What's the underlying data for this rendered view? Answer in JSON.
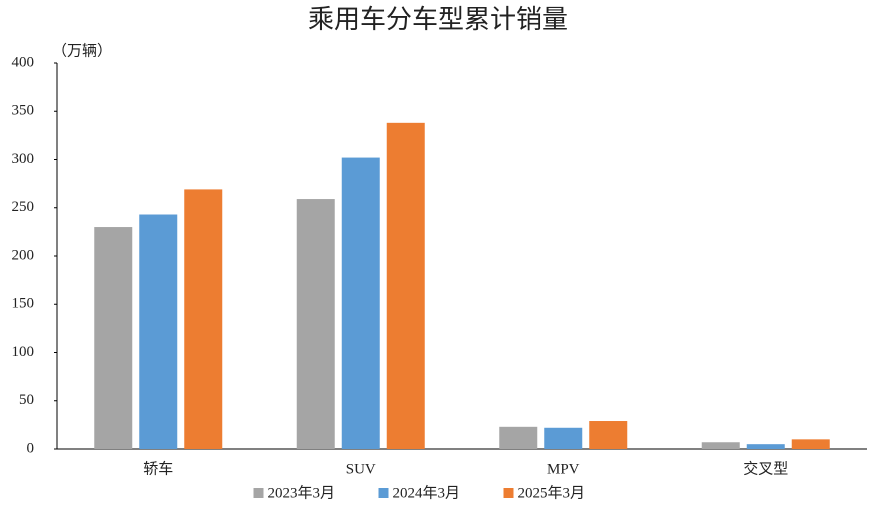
{
  "chart_data": {
    "type": "bar",
    "title": "乘用车分车型累计销量",
    "y_label": "（万辆）",
    "categories": [
      "轿车",
      "SUV",
      "MPV",
      "交叉型"
    ],
    "series": [
      {
        "name": "2023年3月",
        "color": "#a5a5a5",
        "values": [
          230,
          259,
          23,
          7
        ]
      },
      {
        "name": "2024年3月",
        "color": "#5b9bd5",
        "values": [
          243,
          302,
          22,
          5
        ]
      },
      {
        "name": "2025年3月",
        "color": "#ed7d31",
        "values": [
          269,
          338,
          29,
          10
        ]
      }
    ],
    "ylim": [
      0,
      400
    ],
    "yticks": [
      0,
      50,
      100,
      150,
      200,
      250,
      300,
      350,
      400
    ],
    "grid": false,
    "legend": "bottom"
  }
}
